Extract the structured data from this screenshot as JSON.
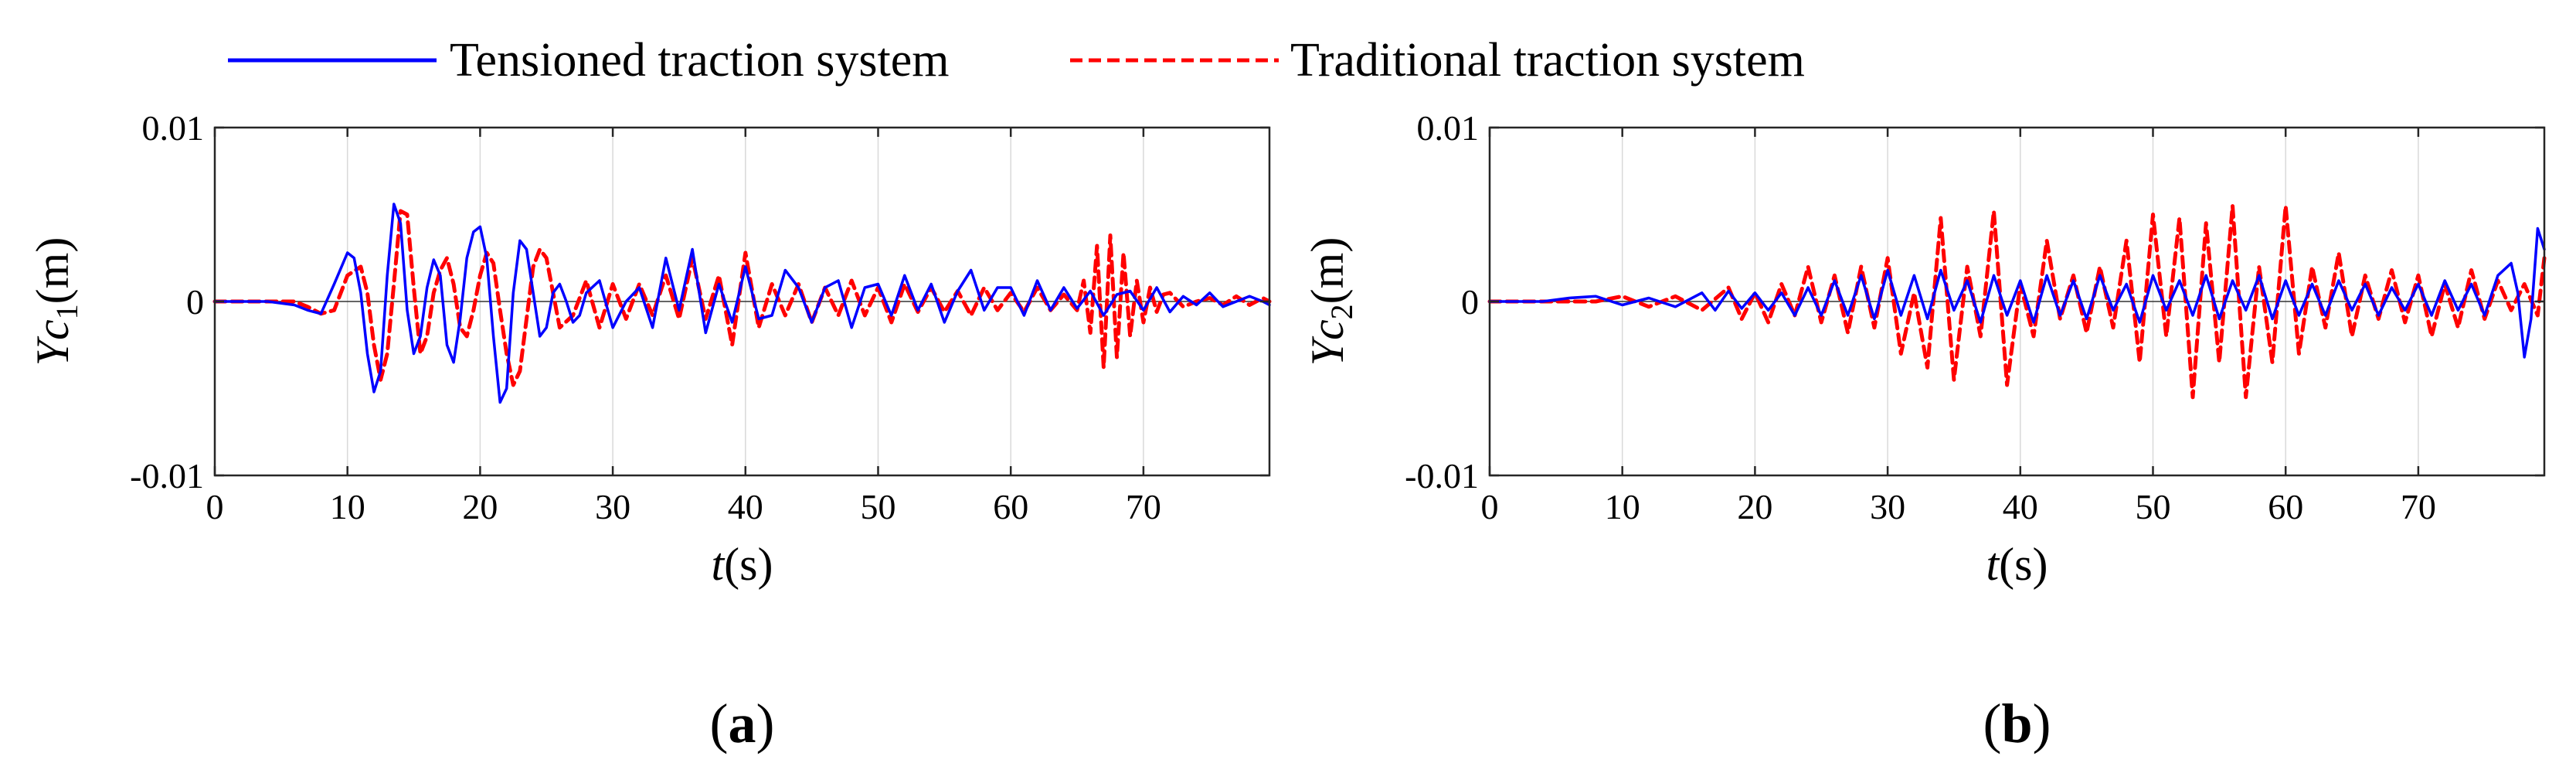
{
  "legend": [
    {
      "name": "Tensioned traction system",
      "color": "#0000ff",
      "dash": "solid"
    },
    {
      "name": "Traditional traction system",
      "color": "#ff0000",
      "dash": "dashed"
    }
  ],
  "chart_data": [
    {
      "type": "line",
      "panel": "(a)",
      "caption_letter": "a",
      "xlabel_symbol": "t",
      "xlabel_unit": "(s)",
      "ylabel_symbol": "Yc",
      "ylabel_subscript": "1",
      "ylabel_unit": "(m)",
      "xlim": [
        0,
        79.5
      ],
      "ylim": [
        -0.01,
        0.01
      ],
      "xticks": [
        0,
        10,
        20,
        30,
        40,
        50,
        60,
        70
      ],
      "xtick_labels": [
        "0",
        "10",
        "20",
        "30",
        "40",
        "50",
        "60",
        "70"
      ],
      "yticks": [
        -0.01,
        0,
        0.01
      ],
      "ytick_labels": [
        "-0.01",
        "0",
        "0.01"
      ],
      "grid": "vertical",
      "series": [
        {
          "name": "Tensioned traction system",
          "x": [
            0,
            2,
            4,
            6,
            7,
            8,
            9,
            10,
            10.5,
            11,
            11.5,
            12,
            12.5,
            13,
            13.5,
            14,
            14.5,
            15,
            15.5,
            16,
            16.5,
            17,
            17.5,
            18,
            18.5,
            19,
            19.5,
            20,
            20.5,
            21,
            21.5,
            22,
            22.5,
            23,
            23.5,
            24,
            24.5,
            25,
            25.5,
            26,
            26.5,
            27,
            27.5,
            28,
            29,
            30,
            31,
            32,
            33,
            34,
            35,
            36,
            37,
            38,
            39,
            40,
            41,
            42,
            43,
            44,
            45,
            46,
            47,
            48,
            49,
            50,
            51,
            52,
            53,
            54,
            55,
            56,
            57,
            58,
            59,
            60,
            61,
            62,
            63,
            64,
            65,
            66,
            67,
            68,
            69,
            70,
            71,
            72,
            73,
            74,
            75,
            76,
            77,
            78,
            79,
            79.5
          ],
          "values": [
            0,
            0,
            0,
            -0.0002,
            -0.0005,
            -0.0007,
            0.001,
            0.0028,
            0.0025,
            0.0005,
            -0.003,
            -0.0052,
            -0.004,
            0.0015,
            0.0056,
            0.0045,
            -0.0005,
            -0.003,
            -0.002,
            0.0008,
            0.0024,
            0.0015,
            -0.0025,
            -0.0035,
            -0.001,
            0.0025,
            0.004,
            0.0043,
            0.0025,
            -0.002,
            -0.0058,
            -0.005,
            0.0005,
            0.0035,
            0.003,
            0.0005,
            -0.002,
            -0.0015,
            0.0005,
            0.001,
            0,
            -0.0012,
            -0.0008,
            0.0005,
            0.0012,
            -0.0015,
            0,
            0.0008,
            -0.0015,
            0.0025,
            -0.0005,
            0.003,
            -0.0018,
            0.001,
            -0.0012,
            0.002,
            -0.001,
            -0.0008,
            0.0018,
            0.0008,
            -0.0012,
            0.0008,
            0.0012,
            -0.0015,
            0.0008,
            0.001,
            -0.0008,
            0.0015,
            -0.0005,
            0.001,
            -0.0012,
            0.0006,
            0.0018,
            -0.0005,
            0.0008,
            0.0008,
            -0.0008,
            0.0012,
            -0.0005,
            0.0008,
            -0.0004,
            0.0006,
            -0.0008,
            0.0004,
            0.0006,
            -0.0005,
            0.0008,
            -0.0006,
            0.0003,
            -0.0002,
            0.0005,
            -0.0003,
            0,
            0.0003,
            0,
            -0.0002
          ]
        },
        {
          "name": "Traditional traction system",
          "x": [
            0,
            2,
            4,
            6,
            7,
            8,
            9,
            10,
            11,
            11.5,
            12,
            12.5,
            13,
            13.5,
            14,
            14.5,
            15,
            15.5,
            16,
            16.5,
            17,
            17.5,
            18,
            18.5,
            19,
            19.5,
            20,
            20.5,
            21,
            21.5,
            22,
            22.5,
            23,
            23.5,
            24,
            24.5,
            25,
            26,
            27,
            28,
            29,
            30,
            31,
            32,
            33,
            34,
            35,
            36,
            37,
            38,
            39,
            40,
            41,
            42,
            43,
            44,
            45,
            46,
            47,
            48,
            49,
            50,
            51,
            52,
            53,
            54,
            55,
            56,
            57,
            58,
            59,
            60,
            61,
            62,
            63,
            64,
            65,
            65.5,
            66,
            66.5,
            67,
            67.5,
            68,
            68.5,
            69,
            69.5,
            70,
            70.5,
            71,
            71.5,
            72,
            73,
            74,
            75,
            76,
            77,
            78,
            79,
            79.5
          ],
          "values": [
            0,
            0,
            0,
            0,
            -0.0003,
            -0.0007,
            -0.0005,
            0.0015,
            0.002,
            0.0005,
            -0.0025,
            -0.0045,
            -0.003,
            0.001,
            0.0052,
            0.005,
            0.0008,
            -0.003,
            -0.002,
            0.0005,
            0.0018,
            0.0025,
            0.001,
            -0.0015,
            -0.002,
            -0.0005,
            0.0015,
            0.0028,
            0.0022,
            -0.0005,
            -0.003,
            -0.0048,
            -0.004,
            -0.001,
            0.002,
            0.003,
            0.0025,
            -0.0015,
            -0.0008,
            0.0012,
            -0.0015,
            0.001,
            -0.001,
            0.001,
            -0.0008,
            0.0015,
            -0.001,
            0.0025,
            -0.001,
            0.0015,
            -0.0025,
            0.0028,
            -0.0015,
            0.001,
            -0.0008,
            0.001,
            -0.0012,
            0.0008,
            -0.0008,
            0.0012,
            -0.0008,
            0.0008,
            -0.0012,
            0.001,
            -0.0006,
            0.0008,
            -0.0006,
            0.0006,
            -0.0008,
            0.0008,
            -0.0005,
            0.0005,
            -0.0006,
            0.0008,
            -0.0005,
            0.0004,
            -0.0005,
            0.0012,
            -0.0018,
            0.0032,
            -0.0038,
            0.0038,
            -0.0032,
            0.0028,
            -0.002,
            0.0012,
            -0.0012,
            0.0008,
            -0.0006,
            0.0004,
            0.0005,
            -0.0003,
            0,
            0.0002,
            -0.0002,
            0.0003,
            -0.0002,
            0.0002,
            0
          ]
        }
      ]
    },
    {
      "type": "line",
      "panel": "(b)",
      "caption_letter": "b",
      "xlabel_symbol": "t",
      "xlabel_unit": "(s)",
      "ylabel_symbol": "Yc",
      "ylabel_subscript": "2",
      "ylabel_unit": "(m)",
      "xlim": [
        0,
        79.5
      ],
      "ylim": [
        -0.01,
        0.01
      ],
      "xticks": [
        0,
        10,
        20,
        30,
        40,
        50,
        60,
        70
      ],
      "xtick_labels": [
        "0",
        "10",
        "20",
        "30",
        "40",
        "50",
        "60",
        "70"
      ],
      "yticks": [
        -0.01,
        0,
        0.01
      ],
      "ytick_labels": [
        "-0.01",
        "0",
        "0.01"
      ],
      "grid": "vertical",
      "series": [
        {
          "name": "Tensioned traction system",
          "x": [
            0,
            2,
            4,
            6,
            8,
            10,
            12,
            14,
            16,
            17,
            18,
            19,
            20,
            21,
            22,
            23,
            24,
            25,
            26,
            27,
            28,
            29,
            30,
            31,
            32,
            33,
            34,
            35,
            36,
            37,
            38,
            39,
            40,
            41,
            42,
            43,
            44,
            45,
            46,
            47,
            48,
            49,
            50,
            51,
            52,
            53,
            54,
            55,
            56,
            57,
            58,
            59,
            60,
            61,
            62,
            63,
            64,
            65,
            66,
            67,
            68,
            69,
            70,
            71,
            72,
            73,
            74,
            75,
            76,
            77,
            77.5,
            78,
            78.5,
            79,
            79.5
          ],
          "values": [
            0,
            0,
            0,
            0.0002,
            0.0003,
            -0.0002,
            0.0002,
            -0.0003,
            0.0005,
            -0.0005,
            0.0006,
            -0.0004,
            0.0005,
            -0.0005,
            0.0005,
            -0.0008,
            0.0008,
            -0.0008,
            0.0012,
            -0.0008,
            0.0015,
            -0.001,
            0.0018,
            -0.0008,
            0.0015,
            -0.001,
            0.0018,
            -0.0005,
            0.0012,
            -0.0012,
            0.0015,
            -0.0008,
            0.0012,
            -0.0012,
            0.0015,
            -0.0008,
            0.0012,
            -0.001,
            0.0015,
            -0.0005,
            0.001,
            -0.0012,
            0.0015,
            -0.0005,
            0.0012,
            -0.0008,
            0.0015,
            -0.001,
            0.0012,
            -0.0005,
            0.0015,
            -0.001,
            0.0012,
            -0.0008,
            0.001,
            -0.0008,
            0.0012,
            -0.0005,
            0.001,
            -0.0008,
            0.0008,
            -0.0005,
            0.001,
            -0.0008,
            0.0012,
            -0.0005,
            0.001,
            -0.0008,
            0.0015,
            0.0022,
            0.0005,
            -0.0032,
            -0.001,
            0.0042,
            0.003
          ]
        },
        {
          "name": "Traditional traction system",
          "x": [
            0,
            2,
            4,
            6,
            8,
            10,
            12,
            14,
            16,
            18,
            19,
            20,
            21,
            22,
            23,
            24,
            25,
            26,
            27,
            28,
            29,
            30,
            31,
            32,
            33,
            34,
            35,
            36,
            37,
            38,
            39,
            40,
            41,
            42,
            43,
            44,
            45,
            46,
            47,
            48,
            49,
            50,
            51,
            52,
            53,
            54,
            55,
            56,
            57,
            58,
            59,
            60,
            61,
            62,
            63,
            64,
            65,
            66,
            67,
            68,
            69,
            70,
            71,
            72,
            73,
            74,
            75,
            76,
            77,
            78,
            79,
            79.5
          ],
          "values": [
            0,
            0,
            0,
            0,
            0,
            0.0003,
            -0.0003,
            0.0003,
            -0.0005,
            0.0008,
            -0.001,
            0.0005,
            -0.0012,
            0.001,
            -0.0008,
            0.002,
            -0.0012,
            0.0015,
            -0.0018,
            0.002,
            -0.0015,
            0.0025,
            -0.003,
            0.0005,
            -0.0038,
            0.0048,
            -0.0045,
            0.002,
            -0.002,
            0.0052,
            -0.0048,
            0.001,
            -0.002,
            0.0035,
            -0.001,
            0.0015,
            -0.0018,
            0.002,
            -0.0015,
            0.0035,
            -0.0035,
            0.005,
            -0.002,
            0.0048,
            -0.0055,
            0.0045,
            -0.0035,
            0.0055,
            -0.0055,
            0.002,
            -0.0035,
            0.0055,
            -0.003,
            0.002,
            -0.0015,
            0.0028,
            -0.002,
            0.0015,
            -0.001,
            0.0018,
            -0.0012,
            0.0015,
            -0.002,
            0.001,
            -0.0015,
            0.0018,
            -0.001,
            0.0012,
            -0.0005,
            0.001,
            -0.0008,
            0.0025
          ]
        }
      ]
    }
  ]
}
